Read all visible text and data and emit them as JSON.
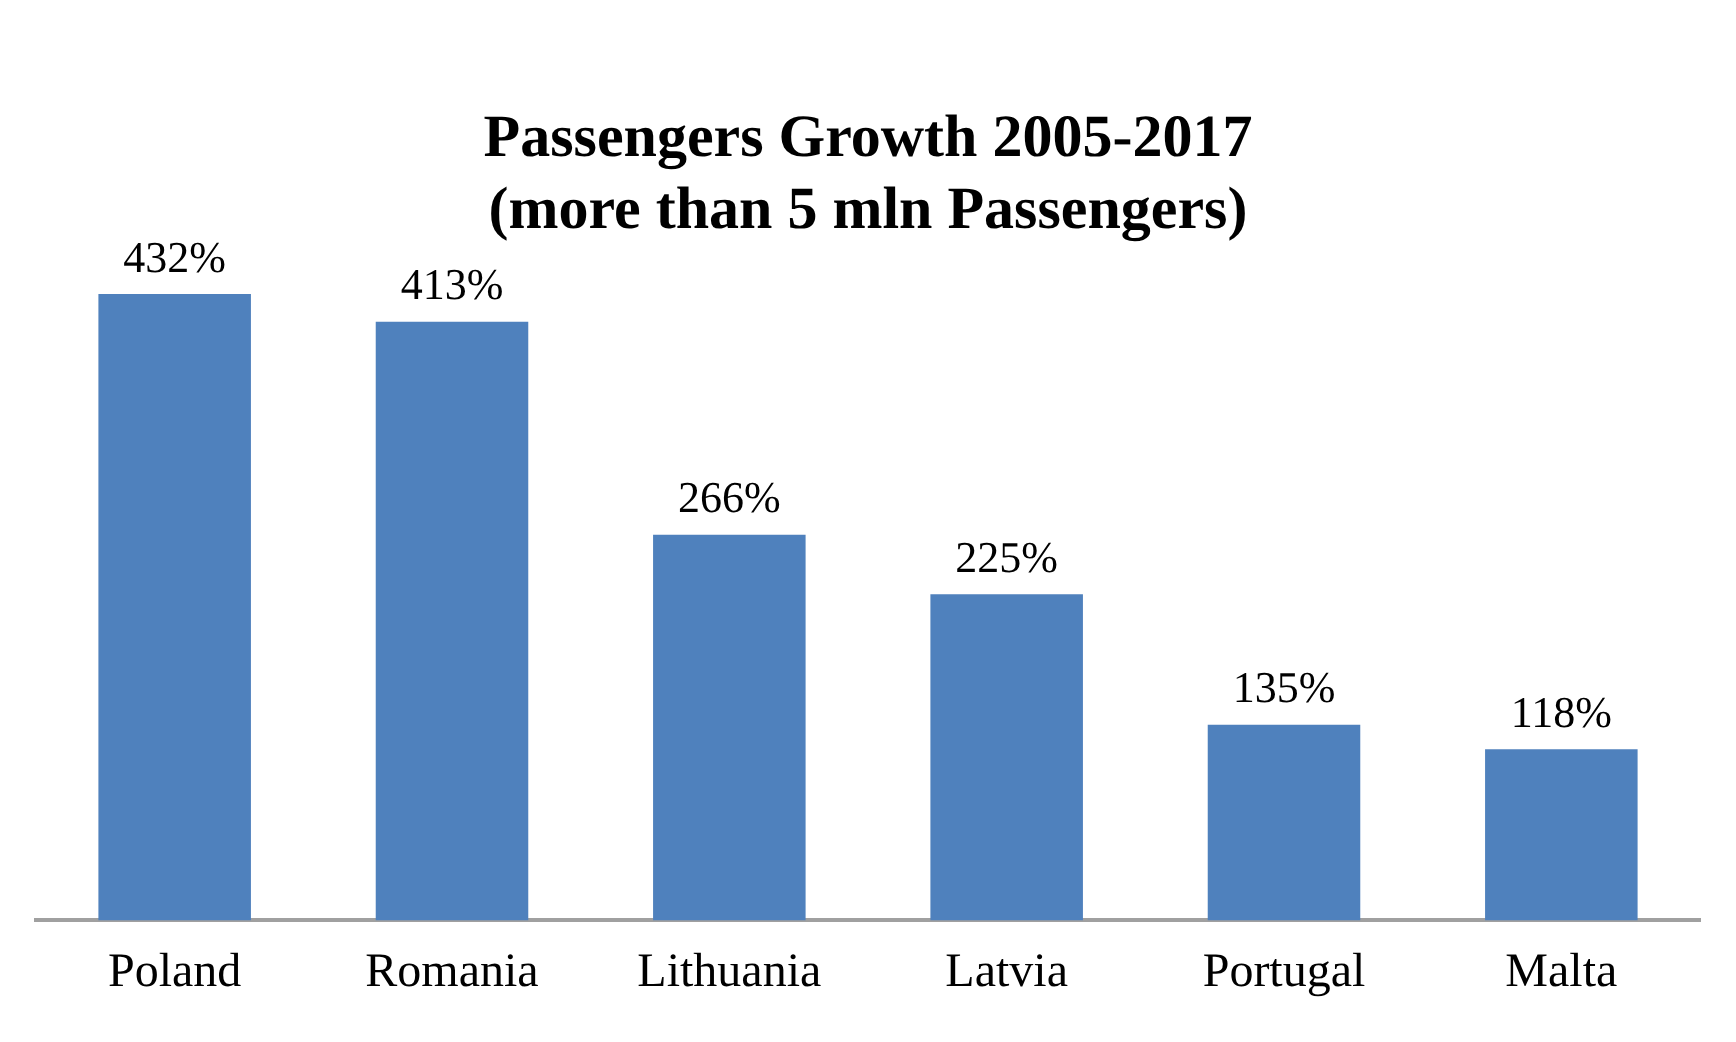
{
  "chart_data": {
    "type": "bar",
    "title": "Passengers Growth 2005-2017\n(more than 5 mln Passengers)",
    "categories": [
      "Poland",
      "Romania",
      "Lithuania",
      "Latvia",
      "Portugal",
      "Malta"
    ],
    "values": [
      432,
      413,
      266,
      225,
      135,
      118
    ],
    "value_labels": [
      "432%",
      "413%",
      "266%",
      "225%",
      "135%",
      "118%"
    ],
    "color": "#4f81bd",
    "grid": false,
    "legend": false
  }
}
